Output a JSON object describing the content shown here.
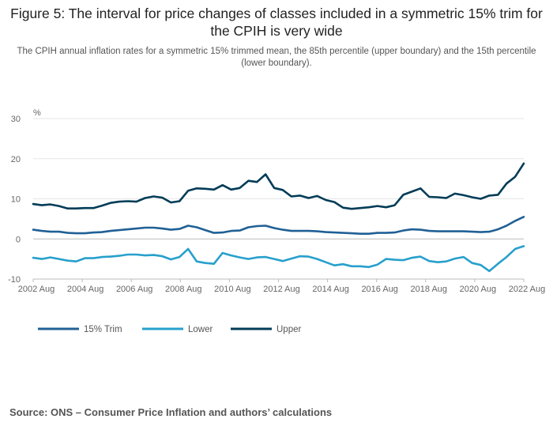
{
  "chart_data": {
    "type": "line",
    "title": "Figure 5: The interval for price changes of classes included in a symmetric 15% trim for the CPIH is very wide",
    "subtitle": "The CPIH annual inflation rates for a symmetric 15% trimmed mean, the 85th percentile (upper boundary) and the 15th percentile (lower boundary).",
    "ylabel": "%",
    "xlabel": "",
    "ylim": [
      -10,
      30
    ],
    "yticks": [
      "30",
      "20",
      "10",
      "0",
      "-10"
    ],
    "x_start": "2002 Aug",
    "x_end": "2022 Aug",
    "xtick_labels": [
      "2002 Aug",
      "2004 Aug",
      "2006 Aug",
      "2008 Aug",
      "2010 Aug",
      "2012 Aug",
      "2014 Aug",
      "2016 Aug",
      "2018 Aug",
      "2020 Aug",
      "2022 Aug"
    ],
    "legend_position": "bottom-left",
    "series": [
      {
        "name": "15% Trim",
        "color": "#206095",
        "values": [
          2.3,
          2.0,
          1.8,
          1.8,
          1.5,
          1.4,
          1.4,
          1.6,
          1.7,
          2.0,
          2.2,
          2.4,
          2.6,
          2.8,
          2.8,
          2.6,
          2.3,
          2.5,
          3.3,
          2.9,
          2.2,
          1.5,
          1.6,
          2.0,
          2.1,
          2.9,
          3.2,
          3.3,
          2.7,
          2.3,
          2.0,
          2.0,
          2.0,
          1.9,
          1.7,
          1.6,
          1.5,
          1.4,
          1.3,
          1.3,
          1.5,
          1.5,
          1.6,
          2.1,
          2.4,
          2.3,
          2.0,
          1.9,
          1.9,
          1.9,
          1.9,
          1.8,
          1.7,
          1.8,
          2.4,
          3.3,
          4.5,
          5.5
        ]
      },
      {
        "name": "Lower",
        "color": "#27a0cc",
        "values": [
          -4.7,
          -5.0,
          -4.6,
          -5.0,
          -5.4,
          -5.6,
          -4.8,
          -4.8,
          -4.5,
          -4.4,
          -4.2,
          -3.9,
          -3.9,
          -4.1,
          -4.0,
          -4.3,
          -5.1,
          -4.5,
          -2.5,
          -5.6,
          -6.0,
          -6.2,
          -3.5,
          -4.1,
          -4.6,
          -5.0,
          -4.6,
          -4.5,
          -5.0,
          -5.5,
          -4.9,
          -4.3,
          -4.4,
          -5.0,
          -5.8,
          -6.6,
          -6.3,
          -6.8,
          -6.8,
          -7.0,
          -6.4,
          -5.0,
          -5.2,
          -5.3,
          -4.7,
          -4.4,
          -5.5,
          -5.8,
          -5.6,
          -4.9,
          -4.5,
          -6.0,
          -6.5,
          -8.0,
          -6.2,
          -4.5,
          -2.5,
          -1.8
        ]
      },
      {
        "name": "Upper",
        "color": "#003c57",
        "values": [
          8.7,
          8.4,
          8.6,
          8.2,
          7.6,
          7.6,
          7.7,
          7.7,
          8.3,
          9.0,
          9.3,
          9.4,
          9.3,
          10.2,
          10.6,
          10.3,
          9.1,
          9.4,
          12.0,
          12.6,
          12.5,
          12.3,
          13.4,
          12.3,
          12.7,
          14.5,
          14.2,
          16.1,
          12.7,
          12.2,
          10.6,
          10.8,
          10.2,
          10.7,
          9.7,
          9.2,
          7.8,
          7.5,
          7.7,
          7.9,
          8.2,
          7.9,
          8.4,
          11.0,
          11.8,
          12.6,
          10.5,
          10.4,
          10.2,
          11.3,
          10.9,
          10.4,
          10.0,
          10.8,
          11.0,
          13.8,
          15.5,
          18.8
        ]
      }
    ]
  },
  "source_text": "Source: ONS  – Consumer Price Inflation and authors’ calculations"
}
